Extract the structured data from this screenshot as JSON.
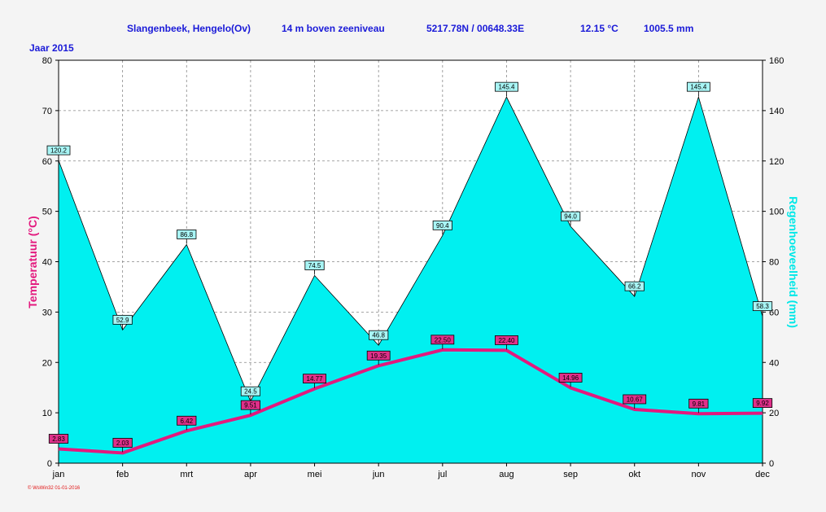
{
  "header": {
    "station": "Slangenbeek, Hengelo(Ov)",
    "elevation": "14 m boven zeeniveau",
    "coords": "5217.78N / 00648.33E",
    "avg_temp": "12.15 °C",
    "total_rain": "1005.5 mm",
    "year": "Jaar  2015"
  },
  "footer": "© WsWin32  01-01-2016",
  "colors": {
    "rain_fill": "#00f0f0",
    "temp_line": "#e3197e",
    "title_color": "#1a1ad8",
    "y2_label_color": "#00e8e8"
  },
  "chart_data": {
    "type": "line",
    "categories": [
      "jan",
      "feb",
      "mrt",
      "apr",
      "mei",
      "jun",
      "jul",
      "aug",
      "sep",
      "okt",
      "nov",
      "dec"
    ],
    "series": [
      {
        "name": "Temperatuur",
        "axis": "left",
        "values": [
          2.83,
          2.03,
          6.42,
          9.51,
          14.77,
          19.35,
          22.5,
          22.4,
          14.96,
          10.67,
          9.81,
          9.92
        ],
        "labels": [
          "2.83",
          "2.03",
          "6.42",
          "9.51",
          "14.77",
          "19.35",
          "22.50",
          "22.40",
          "14.96",
          "10.67",
          "9.81",
          "9.92"
        ]
      },
      {
        "name": "Regenhoeveelheid",
        "axis": "right",
        "chart_type": "area",
        "values": [
          120.2,
          52.9,
          86.8,
          24.5,
          74.5,
          46.8,
          90.4,
          145.4,
          94.0,
          66.2,
          145.4,
          58.3
        ],
        "labels": [
          "120.2",
          "52.9",
          "86.8",
          "24.5",
          "74.5",
          "46.8",
          "90.4",
          "145.4",
          "94.0",
          "66.2",
          "145.4",
          "58.3"
        ]
      }
    ],
    "ylabel": "Temperatuur  (°C)",
    "y2label": "Regenhoeveelheid  (mm)",
    "ylim": [
      0,
      80
    ],
    "y2lim": [
      0,
      160
    ],
    "yticks": [
      "0",
      "10",
      "20",
      "30",
      "40",
      "50",
      "60",
      "70",
      "80"
    ],
    "y2ticks": [
      "0",
      "20",
      "40",
      "60",
      "80",
      "100",
      "120",
      "140",
      "160"
    ],
    "grid": true
  }
}
